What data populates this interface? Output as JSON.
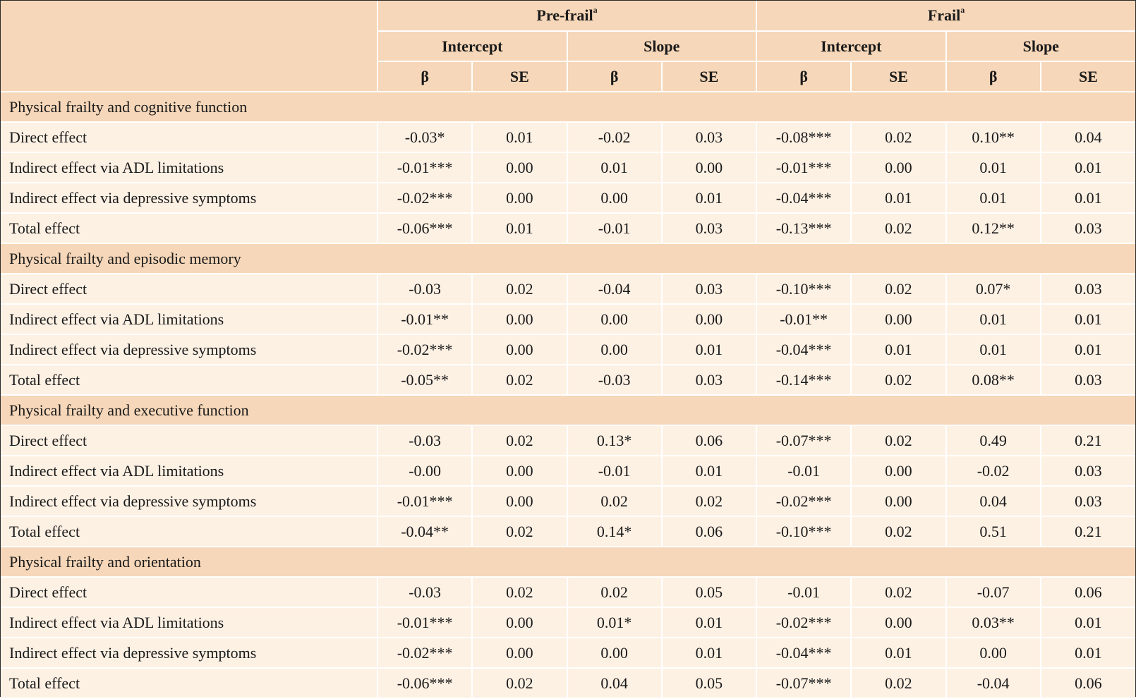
{
  "header": {
    "groups": [
      {
        "label": "Pre-frail",
        "sup": "a"
      },
      {
        "label": "Frail",
        "sup": "a"
      }
    ],
    "subgroups": [
      "Intercept",
      "Slope",
      "Intercept",
      "Slope"
    ],
    "stats": [
      "β",
      "SE",
      "β",
      "SE",
      "β",
      "SE",
      "β",
      "SE"
    ]
  },
  "sections": [
    {
      "title": "Physical frailty and cognitive function",
      "rows": [
        {
          "label": "Direct effect",
          "values": [
            "-0.03*",
            "0.01",
            "-0.02",
            "0.03",
            "-0.08***",
            "0.02",
            "0.10**",
            "0.04"
          ]
        },
        {
          "label": "Indirect effect via ADL limitations",
          "values": [
            "-0.01***",
            "0.00",
            "0.01",
            "0.00",
            "-0.01***",
            "0.00",
            "0.01",
            "0.01"
          ]
        },
        {
          "label": "Indirect effect via depressive symptoms",
          "values": [
            "-0.02***",
            "0.00",
            "0.00",
            "0.01",
            "-0.04***",
            "0.01",
            "0.01",
            "0.01"
          ]
        },
        {
          "label": "Total effect",
          "values": [
            "-0.06***",
            "0.01",
            "-0.01",
            "0.03",
            "-0.13***",
            "0.02",
            "0.12**",
            "0.03"
          ]
        }
      ]
    },
    {
      "title": "Physical frailty and episodic memory",
      "rows": [
        {
          "label": "Direct effect",
          "values": [
            "-0.03",
            "0.02",
            "-0.04",
            "0.03",
            "-0.10***",
            "0.02",
            "0.07*",
            "0.03"
          ]
        },
        {
          "label": "Indirect effect via ADL limitations",
          "values": [
            "-0.01**",
            "0.00",
            "0.00",
            "0.00",
            "-0.01**",
            "0.00",
            "0.01",
            "0.01"
          ]
        },
        {
          "label": "Indirect effect via depressive symptoms",
          "values": [
            "-0.02***",
            "0.00",
            "0.00",
            "0.01",
            "-0.04***",
            "0.01",
            "0.01",
            "0.01"
          ]
        },
        {
          "label": "Total effect",
          "values": [
            "-0.05**",
            "0.02",
            "-0.03",
            "0.03",
            "-0.14***",
            "0.02",
            "0.08**",
            "0.03"
          ]
        }
      ]
    },
    {
      "title": "Physical frailty and executive function",
      "rows": [
        {
          "label": "Direct effect",
          "values": [
            "-0.03",
            "0.02",
            "0.13*",
            "0.06",
            "-0.07***",
            "0.02",
            "0.49",
            "0.21"
          ]
        },
        {
          "label": "Indirect effect via ADL limitations",
          "values": [
            "-0.00",
            "0.00",
            "-0.01",
            "0.01",
            "-0.01",
            "0.00",
            "-0.02",
            "0.03"
          ]
        },
        {
          "label": "Indirect effect via depressive symptoms",
          "values": [
            "-0.01***",
            "0.00",
            "0.02",
            "0.02",
            "-0.02***",
            "0.00",
            "0.04",
            "0.03"
          ]
        },
        {
          "label": "Total effect",
          "values": [
            "-0.04**",
            "0.02",
            "0.14*",
            "0.06",
            "-0.10***",
            "0.02",
            "0.51",
            "0.21"
          ]
        }
      ]
    },
    {
      "title": "Physical frailty and orientation",
      "rows": [
        {
          "label": "Direct effect",
          "values": [
            "-0.03",
            "0.02",
            "0.02",
            "0.05",
            "-0.01",
            "0.02",
            "-0.07",
            "0.06"
          ]
        },
        {
          "label": "Indirect effect via ADL limitations",
          "values": [
            "-0.01***",
            "0.00",
            "0.01*",
            "0.01",
            "-0.02***",
            "0.00",
            "0.03**",
            "0.01"
          ]
        },
        {
          "label": "Indirect effect via depressive symptoms",
          "values": [
            "-0.02***",
            "0.00",
            "0.00",
            "0.01",
            "-0.04***",
            "0.01",
            "0.00",
            "0.01"
          ]
        },
        {
          "label": "Total effect",
          "values": [
            "-0.06***",
            "0.02",
            "0.04",
            "0.05",
            "-0.07***",
            "0.02",
            "-0.04",
            "0.06"
          ]
        }
      ]
    }
  ]
}
